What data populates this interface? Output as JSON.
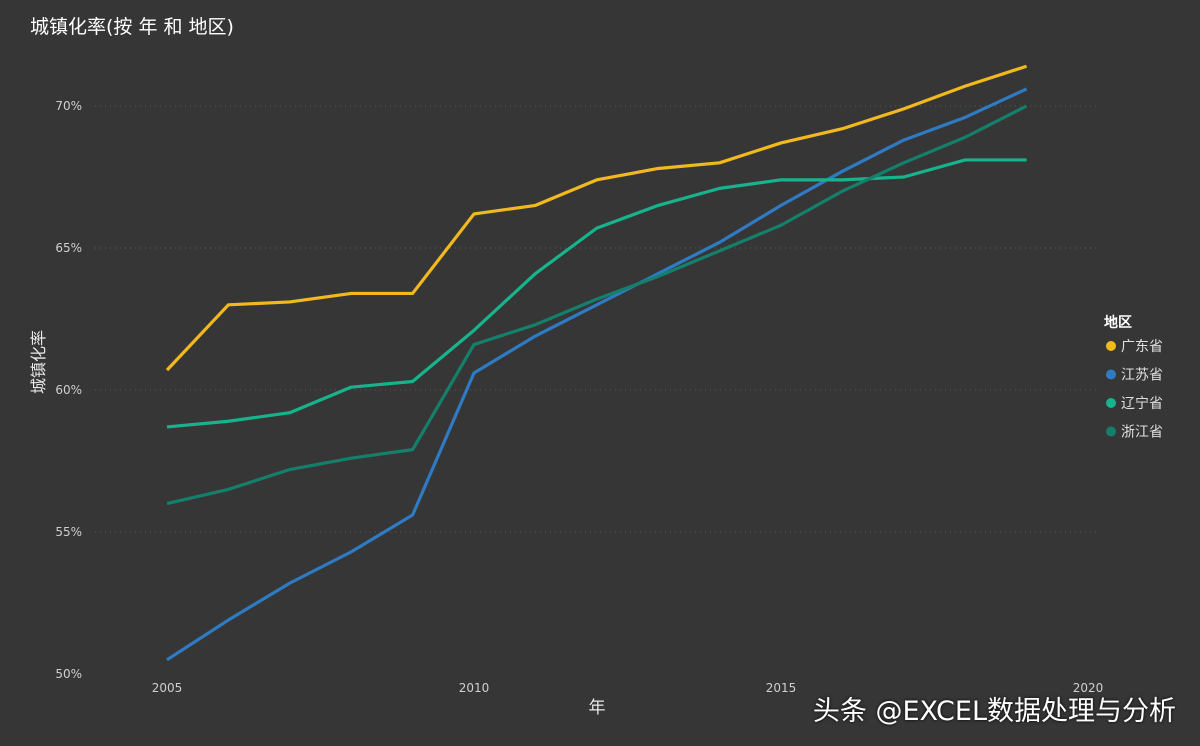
{
  "chart_data": {
    "type": "line",
    "title": "城镇化率(按 年 和 地区)",
    "xlabel": "年",
    "ylabel": "城镇化率",
    "x": [
      2005,
      2006,
      2007,
      2008,
      2009,
      2010,
      2011,
      2012,
      2013,
      2014,
      2015,
      2016,
      2017,
      2018,
      2019
    ],
    "xlim": [
      2005,
      2020
    ],
    "ylim": [
      50,
      72
    ],
    "x_ticks": [
      "2005",
      "2010",
      "2015",
      "2020"
    ],
    "y_ticks": [
      "50%",
      "55%",
      "60%",
      "65%",
      "70%"
    ],
    "grid": "horizontal dotted",
    "legend_title": "地区",
    "legend_position": "right",
    "series": [
      {
        "name": "广东省",
        "color": "#F2B91E",
        "values": [
          60.7,
          63.0,
          63.1,
          63.4,
          63.4,
          66.2,
          66.5,
          67.4,
          67.8,
          68.0,
          68.7,
          69.2,
          69.9,
          70.7,
          71.4
        ]
      },
      {
        "name": "江苏省",
        "color": "#2E7BC4",
        "values": [
          50.5,
          51.9,
          53.2,
          54.3,
          55.6,
          60.6,
          61.9,
          63.0,
          64.1,
          65.2,
          66.5,
          67.7,
          68.8,
          69.6,
          70.6
        ]
      },
      {
        "name": "辽宁省",
        "color": "#17B38D",
        "values": [
          58.7,
          58.9,
          59.2,
          60.1,
          60.3,
          62.1,
          64.1,
          65.7,
          66.5,
          67.1,
          67.4,
          67.4,
          67.5,
          68.1,
          68.1
        ]
      },
      {
        "name": "浙江省",
        "color": "#14806B",
        "values": [
          56.0,
          56.5,
          57.2,
          57.6,
          57.9,
          61.6,
          62.3,
          63.2,
          64.0,
          64.9,
          65.8,
          67.0,
          68.0,
          68.9,
          70.0
        ]
      }
    ]
  },
  "watermark": "头条 @EXCEL数据处理与分析"
}
